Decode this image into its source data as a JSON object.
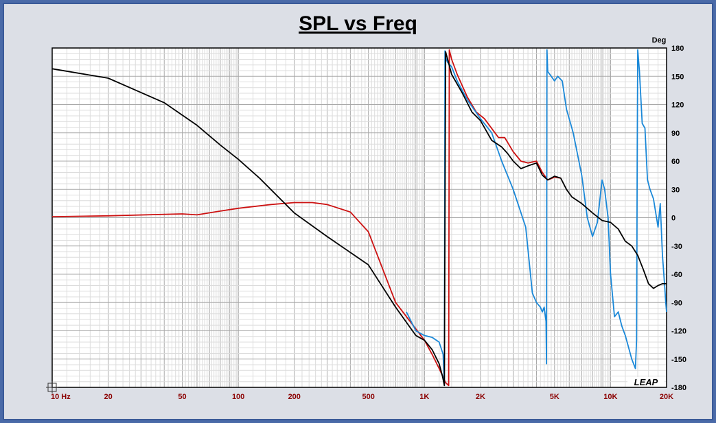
{
  "chart_data": {
    "type": "line",
    "title": "SPL vs Freq",
    "x_scale": "log",
    "xlim": [
      10,
      20000
    ],
    "ylim": [
      -180,
      180
    ],
    "y_unit_label": "Deg",
    "x_tick_labels": [
      {
        "value": 10,
        "label": "10 Hz"
      },
      {
        "value": 20,
        "label": "20"
      },
      {
        "value": 50,
        "label": "50"
      },
      {
        "value": 100,
        "label": "100"
      },
      {
        "value": 200,
        "label": "200"
      },
      {
        "value": 500,
        "label": "500"
      },
      {
        "value": 1000,
        "label": "1K"
      },
      {
        "value": 2000,
        "label": "2K"
      },
      {
        "value": 5000,
        "label": "5K"
      },
      {
        "value": 10000,
        "label": "10K"
      },
      {
        "value": 20000,
        "label": "20K"
      }
    ],
    "y_ticks": [
      180,
      150,
      120,
      90,
      60,
      30,
      0,
      -30,
      -60,
      -90,
      -120,
      -150,
      -180
    ],
    "grid": true,
    "logo_text": "LEAP",
    "series": [
      {
        "color": "#000000",
        "x": [
          10,
          20,
          40,
          60,
          80,
          100,
          130,
          200,
          300,
          500,
          700,
          900,
          1000,
          1100,
          1200,
          1250,
          1280,
          1300,
          1400,
          1600,
          1800,
          2000,
          2300,
          2600,
          2800,
          3000,
          3300,
          3600,
          4000,
          4300,
          4600,
          5000,
          5400,
          5800,
          6200,
          7000,
          8000,
          9000,
          10000,
          11000,
          12000,
          13000,
          14000,
          15000,
          16000,
          17000,
          18000,
          19000,
          20000
        ],
        "y": [
          158,
          148,
          122,
          98,
          77,
          62,
          42,
          5,
          -20,
          -50,
          -95,
          -125,
          -130,
          -140,
          -155,
          -168,
          -178,
          176,
          152,
          132,
          112,
          103,
          82,
          75,
          68,
          60,
          52,
          55,
          58,
          45,
          40,
          44,
          42,
          30,
          22,
          15,
          5,
          -3,
          -5,
          -12,
          -25,
          -30,
          -40,
          -55,
          -70,
          -75,
          -72,
          -70,
          -70
        ]
      },
      {
        "color": "#cc1111",
        "x": [
          10,
          20,
          50,
          60,
          80,
          100,
          150,
          200,
          250,
          300,
          400,
          500,
          700,
          900,
          1000,
          1100,
          1200,
          1300,
          1350,
          1360,
          1400,
          1500,
          1700,
          1900,
          2100,
          2500,
          2700,
          3000,
          3300,
          3600,
          4000,
          4300,
          4600,
          5000,
          5400
        ],
        "y": [
          1,
          2,
          4,
          3,
          7,
          10,
          14,
          16,
          16,
          14,
          6,
          -15,
          -90,
          -118,
          -130,
          -145,
          -160,
          -175,
          -178,
          178,
          168,
          152,
          128,
          112,
          105,
          85,
          85,
          70,
          60,
          58,
          60,
          48,
          40,
          43,
          42
        ]
      },
      {
        "color": "#1a88d8",
        "x": [
          800,
          900,
          1000,
          1100,
          1200,
          1260,
          1280,
          1290,
          1300,
          1330,
          1400,
          1500,
          1700,
          2000,
          2300,
          2600,
          3000,
          3500,
          3800,
          4000,
          4200,
          4300,
          4400,
          4500,
          4530,
          4550,
          4600,
          4800,
          5000,
          5200,
          5500,
          5800,
          6300,
          7000,
          7500,
          8000,
          8500,
          9000,
          9300,
          9700,
          10000,
          10500,
          11000,
          11500,
          12000,
          13000,
          13600,
          13800,
          13900,
          14000,
          14300,
          14800,
          15300,
          15800,
          16300,
          17000,
          18000,
          18500,
          19000,
          19500,
          19800,
          20000
        ],
        "y": [
          -100,
          -120,
          -125,
          -127,
          -132,
          -145,
          -178,
          177,
          170,
          165,
          160,
          145,
          125,
          105,
          90,
          60,
          30,
          -10,
          -80,
          -90,
          -95,
          -100,
          -95,
          -110,
          -155,
          178,
          155,
          150,
          145,
          150,
          145,
          115,
          90,
          45,
          0,
          -20,
          -5,
          40,
          30,
          0,
          -60,
          -105,
          -100,
          -115,
          -125,
          -150,
          -160,
          -130,
          60,
          178,
          155,
          100,
          95,
          40,
          30,
          20,
          -10,
          15,
          -40,
          -70,
          -90,
          -100
        ]
      }
    ]
  }
}
